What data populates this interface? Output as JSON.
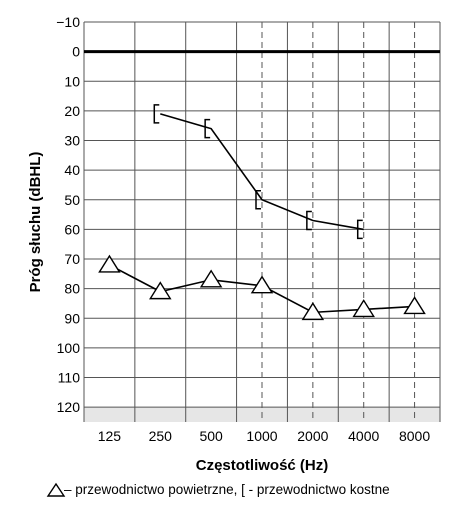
{
  "chart_data": {
    "type": "line",
    "title": "",
    "xlabel": "Częstotliwość (Hz)",
    "ylabel": "Próg słuchu (dBHL)",
    "x_categories": [
      "125",
      "250",
      "500",
      "1000",
      "2000",
      "4000",
      "8000"
    ],
    "y_ticks": [
      -10,
      0,
      10,
      20,
      30,
      40,
      50,
      60,
      70,
      80,
      90,
      100,
      110,
      120
    ],
    "ylim": [
      -10,
      125
    ],
    "y_inverted": true,
    "grid": true,
    "shaded_band": [
      120,
      125
    ],
    "reference_line_y": 0,
    "series": [
      {
        "name": "przewodnictwo powietrzne",
        "marker": "triangle",
        "x": [
          "125",
          "250",
          "500",
          "1000",
          "2000",
          "4000",
          "8000"
        ],
        "values": [
          72,
          81,
          77,
          79,
          88,
          87,
          86
        ]
      },
      {
        "name": "przewodnictwo kostne",
        "marker": "bracket",
        "x": [
          "250",
          "500",
          "1000",
          "2000",
          "4000"
        ],
        "values": [
          21,
          26,
          50,
          57,
          60
        ]
      }
    ],
    "legend": {
      "placement": "bottom",
      "text": "– przewodnictwo powietrzne, [ - przewodnictwo kostne"
    },
    "colors": {
      "line": "#000000",
      "grid": "#555555",
      "band": "#e6e6e6"
    }
  }
}
